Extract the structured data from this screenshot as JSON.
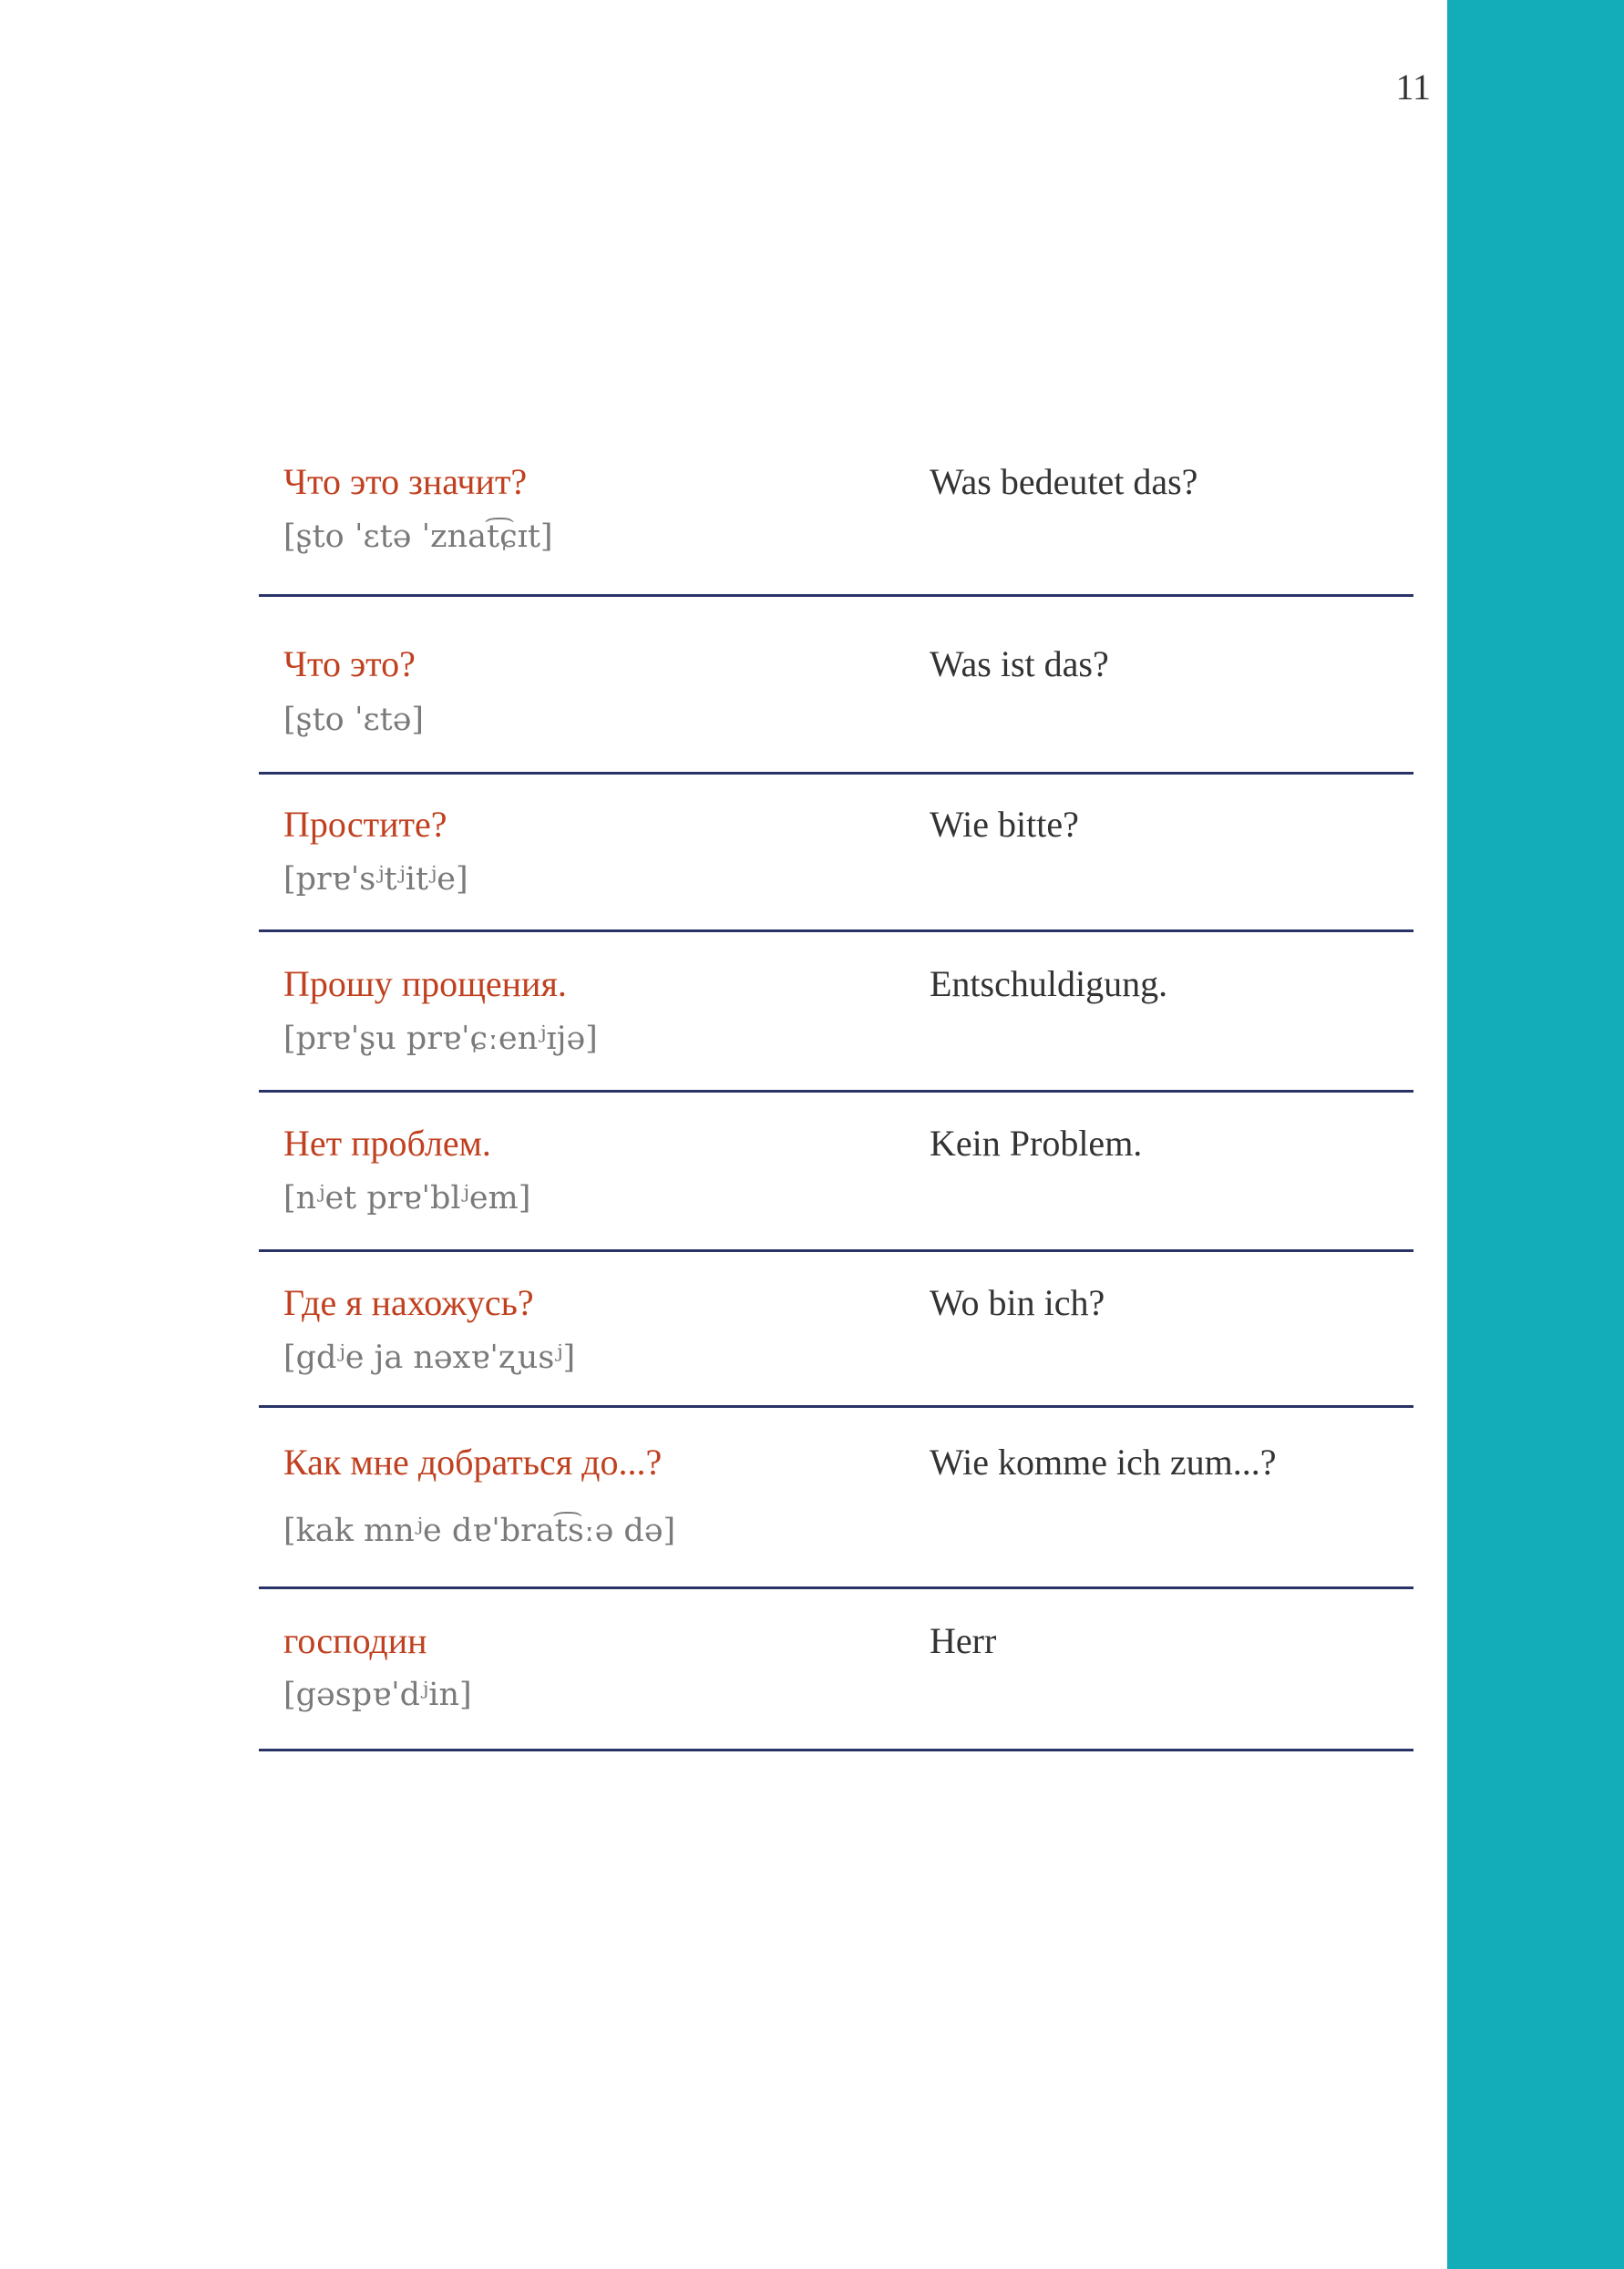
{
  "page_number": "11",
  "colors": {
    "russian": "#c0401f",
    "rule": "#2a3366",
    "sidebar": "#12adb9"
  },
  "phrases": [
    {
      "ru": "Что это значит?",
      "ipa": "[ʂto ˈɛtə ˈznat͡ɕɪt]",
      "de": "Was bedeutet das?"
    },
    {
      "ru": "Что это?",
      "ipa": "[ʂto ˈɛtə]",
      "de": "Was ist das?"
    },
    {
      "ru": "Простите?",
      "ipa": "[prɐˈsʲtʲitʲe]",
      "de": "Wie bitte?"
    },
    {
      "ru": "Прошу прощения.",
      "ipa": "[prɐˈʂu prɐˈɕːenʲɪjə]",
      "de": "Entschuldigung."
    },
    {
      "ru": "Нет проблем.",
      "ipa": "[nʲet prɐˈblʲem]",
      "de": "Kein Problem."
    },
    {
      "ru": "Где я нахожусь?",
      "ipa": "[gdʲe ja nəxɐˈʐusʲ]",
      "de": "Wo bin ich?"
    },
    {
      "ru": "Как мне добраться до...?",
      "ipa": "[kak mnʲe dɐˈbrat͡sːə də]",
      "de": "Wie komme ich zum...?"
    },
    {
      "ru": "господин",
      "ipa": "[gəspɐˈdʲin]",
      "de": "Herr"
    }
  ]
}
